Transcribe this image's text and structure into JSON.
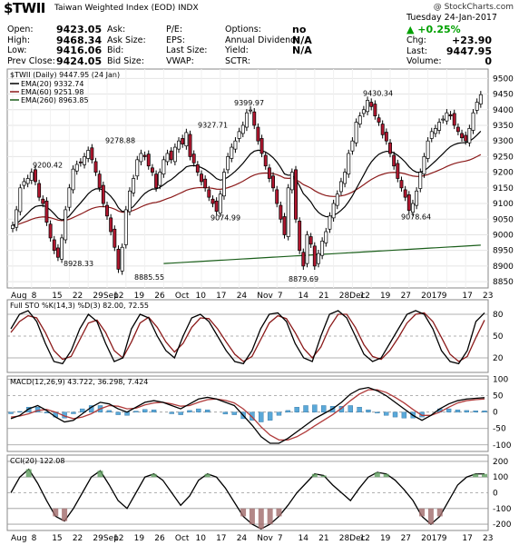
{
  "header": {
    "symbol": "$TWII",
    "name": "Taiwan Weighted Index (EOD)  INDX",
    "watermark": "@ StockCharts.com",
    "date": "Tuesday  24-Jan-2017",
    "change_pct": "+0.25%",
    "stats_left": [
      {
        "k": "Open:",
        "v": "9423.05"
      },
      {
        "k": "High:",
        "v": "9468.34"
      },
      {
        "k": "Low:",
        "v": "9416.06"
      },
      {
        "k": "Prev Close:",
        "v": "9424.05"
      }
    ],
    "stats_mid": [
      {
        "k": "Ask:",
        "v": ""
      },
      {
        "k": "Ask Size:",
        "v": ""
      },
      {
        "k": "Bid:",
        "v": ""
      },
      {
        "k": "Bid Size:",
        "v": ""
      }
    ],
    "stats_mid2": [
      {
        "k": "P/E:",
        "v": ""
      },
      {
        "k": "EPS:",
        "v": ""
      },
      {
        "k": "Last Size:",
        "v": ""
      },
      {
        "k": "VWAP:",
        "v": ""
      }
    ],
    "stats_right": [
      {
        "k": "Options:",
        "v": "no"
      },
      {
        "k": "Annual Dividend:",
        "v": "N/A"
      },
      {
        "k": "Yield:",
        "v": "N/A"
      },
      {
        "k": "SCTR:",
        "v": ""
      }
    ],
    "stats_far": [
      {
        "k": "Chg:",
        "v": "+23.90"
      },
      {
        "k": "Last:",
        "v": "9447.95"
      },
      {
        "k": "Volume:",
        "v": "0"
      }
    ]
  },
  "chart_data": [
    {
      "type": "candlestick",
      "title": "$TWII (Daily) 9447.95 (24 Jan)",
      "legend": [
        {
          "name": "EMA(20) 9332.74",
          "color": "#000000"
        },
        {
          "name": "EMA(60) 9251.98",
          "color": "#8b1a1a"
        },
        {
          "name": "EMA(260) 8963.85",
          "color": "#1a5e1a"
        }
      ],
      "ylim": [
        8830,
        9530
      ],
      "yticks": [
        8850,
        8900,
        8950,
        9000,
        9050,
        9100,
        9150,
        9200,
        9250,
        9300,
        9350,
        9400,
        9450,
        9500
      ],
      "close": [
        9030,
        9080,
        9150,
        9170,
        9180,
        9200,
        9170,
        9120,
        9100,
        9040,
        8990,
        8950,
        8928,
        8990,
        9080,
        9150,
        9210,
        9225,
        9230,
        9250,
        9270,
        9240,
        9200,
        9150,
        9100,
        9060,
        9010,
        8960,
        8890,
        8960,
        9080,
        9140,
        9180,
        9240,
        9260,
        9250,
        9220,
        9200,
        9150,
        9200,
        9240,
        9260,
        9240,
        9280,
        9300,
        9290,
        9327,
        9250,
        9230,
        9200,
        9170,
        9150,
        9120,
        9100,
        9075,
        9130,
        9200,
        9250,
        9280,
        9300,
        9330,
        9350,
        9390,
        9399,
        9350,
        9300,
        9260,
        9220,
        9180,
        9150,
        9100,
        9050,
        9000,
        9150,
        9200,
        9050,
        8950,
        8900,
        9000,
        8970,
        8900,
        8940,
        8980,
        9010,
        9060,
        9100,
        9130,
        9170,
        9200,
        9260,
        9300,
        9360,
        9380,
        9400,
        9430,
        9410,
        9380,
        9360,
        9320,
        9300,
        9260,
        9220,
        9180,
        9150,
        9120,
        9078,
        9100,
        9140,
        9200,
        9250,
        9300,
        9330,
        9340,
        9360,
        9370,
        9390,
        9380,
        9350,
        9330,
        9310,
        9300,
        9340,
        9390,
        9424,
        9448
      ],
      "annotations": [
        {
          "label": "9200.42",
          "value": 9200.42
        },
        {
          "label": "8928.33",
          "value": 8928.33
        },
        {
          "label": "9278.88",
          "value": 9278.88
        },
        {
          "label": "8885.55",
          "value": 8885.55
        },
        {
          "label": "9327.71",
          "value": 9327.71
        },
        {
          "label": "9074.99",
          "value": 9074.99
        },
        {
          "label": "9399.97",
          "value": 9399.97
        },
        {
          "label": "8879.69",
          "value": 8879.69
        },
        {
          "label": "9430.34",
          "value": 9430.34
        },
        {
          "label": "9078.64",
          "value": 9078.64
        }
      ],
      "x_labels": [
        "Aug",
        "8",
        "15",
        "22",
        "29Sep",
        "12",
        "19",
        "26",
        "Oct",
        "10",
        "17",
        "24",
        "Nov",
        "7",
        "14",
        "21",
        "28Dec",
        "12",
        "19",
        "27",
        "2017",
        "9",
        "17",
        "23"
      ]
    },
    {
      "type": "line",
      "title": "Full STO %K(14,3) %D(3) 82.00, 72.55",
      "ylim": [
        0,
        100
      ],
      "yticks": [
        20,
        50,
        80
      ],
      "k": [
        60,
        80,
        85,
        70,
        40,
        15,
        12,
        30,
        60,
        80,
        70,
        40,
        15,
        20,
        60,
        80,
        75,
        50,
        30,
        20,
        50,
        75,
        80,
        70,
        50,
        30,
        15,
        12,
        30,
        60,
        80,
        82,
        70,
        40,
        20,
        15,
        50,
        80,
        85,
        75,
        50,
        25,
        15,
        20,
        40,
        60,
        80,
        85,
        80,
        60,
        30,
        15,
        12,
        30,
        70,
        82
      ],
      "d": [
        55,
        70,
        78,
        75,
        55,
        30,
        18,
        22,
        45,
        68,
        72,
        55,
        30,
        20,
        42,
        68,
        76,
        62,
        42,
        28,
        40,
        62,
        75,
        74,
        60,
        42,
        25,
        15,
        22,
        45,
        68,
        78,
        74,
        55,
        33,
        20,
        35,
        62,
        80,
        80,
        62,
        38,
        22,
        18,
        30,
        48,
        68,
        80,
        82,
        70,
        48,
        25,
        15,
        22,
        48,
        72
      ]
    },
    {
      "type": "bar+line",
      "title": "MACD(12,26,9) 43.722, 36.298, 7.424",
      "ylim": [
        -120,
        110
      ],
      "yticks": [
        -100,
        -50,
        0,
        50,
        100
      ],
      "macd": [
        -20,
        -10,
        10,
        20,
        5,
        -15,
        -30,
        -25,
        -5,
        15,
        30,
        25,
        10,
        0,
        15,
        30,
        35,
        30,
        20,
        10,
        25,
        40,
        45,
        40,
        30,
        20,
        -10,
        -40,
        -75,
        -95,
        -95,
        -80,
        -60,
        -40,
        -20,
        -5,
        10,
        30,
        55,
        70,
        75,
        65,
        50,
        30,
        10,
        -10,
        -25,
        -10,
        10,
        25,
        35,
        40,
        42,
        44
      ],
      "signal": [
        -15,
        -12,
        -5,
        5,
        8,
        0,
        -12,
        -20,
        -15,
        -5,
        10,
        20,
        18,
        10,
        12,
        22,
        28,
        30,
        25,
        18,
        20,
        30,
        38,
        40,
        36,
        28,
        10,
        -15,
        -45,
        -70,
        -85,
        -85,
        -75,
        -60,
        -42,
        -25,
        -8,
        12,
        35,
        55,
        68,
        68,
        60,
        45,
        28,
        8,
        -10,
        -10,
        0,
        15,
        28,
        35,
        38,
        40
      ],
      "hist": [
        -5,
        2,
        15,
        15,
        -3,
        -15,
        -18,
        -5,
        10,
        20,
        20,
        5,
        -8,
        -10,
        3,
        8,
        7,
        0,
        -5,
        -8,
        5,
        10,
        7,
        0,
        -6,
        -8,
        -20,
        -25,
        -30,
        -25,
        -10,
        5,
        15,
        20,
        22,
        20,
        18,
        18,
        20,
        15,
        7,
        -3,
        -10,
        -15,
        -18,
        -18,
        -15,
        0,
        10,
        10,
        7,
        5,
        4,
        4
      ]
    },
    {
      "type": "line",
      "title": "CCI(20) 122.08",
      "ylim": [
        -240,
        240
      ],
      "yticks": [
        -200,
        -100,
        0,
        100,
        200
      ],
      "cci": [
        0,
        100,
        150,
        60,
        -50,
        -150,
        -180,
        -100,
        0,
        100,
        140,
        50,
        -50,
        -100,
        0,
        100,
        120,
        80,
        0,
        -80,
        -20,
        80,
        120,
        100,
        30,
        -60,
        -150,
        -200,
        -230,
        -200,
        -150,
        -80,
        0,
        60,
        120,
        110,
        50,
        0,
        -50,
        30,
        100,
        130,
        120,
        80,
        20,
        -50,
        -150,
        -200,
        -150,
        -50,
        50,
        100,
        120,
        120
      ]
    }
  ]
}
